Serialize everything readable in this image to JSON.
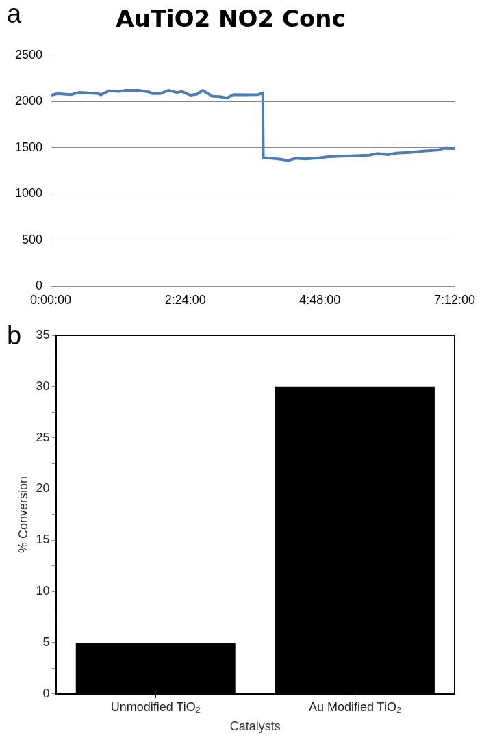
{
  "chart_data": [
    {
      "type": "line",
      "title": "AuTiO2 NO2 Conc",
      "annotations": [
        "a"
      ],
      "color": "#4a7ebb",
      "grid": "y",
      "x": [
        0,
        0.12,
        0.36,
        0.51,
        0.85,
        0.89,
        1.04,
        1.23,
        1.33,
        1.57,
        1.76,
        1.81,
        1.96,
        2.1,
        2.25,
        2.34,
        2.49,
        2.61,
        2.71,
        2.88,
        3.02,
        3.14,
        3.26,
        3.5,
        3.7,
        3.78,
        3.79,
        3.94,
        4.08,
        4.23,
        4.37,
        4.52,
        4.71,
        4.95,
        5.19,
        5.43,
        5.68,
        5.82,
        6.01,
        6.16,
        6.4,
        6.64,
        6.89,
        7.01,
        7.2
      ],
      "values": [
        2066,
        2086,
        2075,
        2098,
        2086,
        2072,
        2115,
        2109,
        2121,
        2121,
        2103,
        2086,
        2086,
        2121,
        2098,
        2109,
        2069,
        2080,
        2121,
        2057,
        2052,
        2037,
        2075,
        2072,
        2075,
        2092,
        1391,
        1385,
        1376,
        1362,
        1385,
        1379,
        1385,
        1402,
        1408,
        1414,
        1419,
        1437,
        1425,
        1442,
        1448,
        1463,
        1474,
        1494,
        1491
      ],
      "xlim": [
        0,
        7.2
      ],
      "xticks": [
        {
          "value": 0,
          "label": "0:00:00"
        },
        {
          "value": 2.4,
          "label": "2:24:00"
        },
        {
          "value": 4.8,
          "label": "4:48:00"
        },
        {
          "value": 7.2,
          "label": "7:12:00"
        }
      ],
      "ylim": [
        0,
        2500
      ],
      "yticks": [
        0,
        500,
        1000,
        1500,
        2000,
        2500
      ]
    },
    {
      "type": "bar",
      "annotations": [
        "b"
      ],
      "xlabel": "Catalysts",
      "ylabel": "% Conversion",
      "categories": [
        "Unmodified TiO₂",
        "Au Modified TiO₂"
      ],
      "values": [
        5,
        30
      ],
      "color": "#000000",
      "ylim": [
        0,
        35
      ],
      "yticks": [
        0,
        {
          "value": 2.5,
          "label": null
        },
        5,
        {
          "value": 7.5,
          "label": null
        },
        10,
        {
          "value": 12.5,
          "label": null
        },
        15,
        {
          "value": 17.5,
          "label": null
        },
        20,
        {
          "value": 22.5,
          "label": null
        },
        25,
        {
          "value": 27.5,
          "label": null
        },
        30,
        {
          "value": 32.5,
          "label": null
        },
        35
      ]
    }
  ]
}
